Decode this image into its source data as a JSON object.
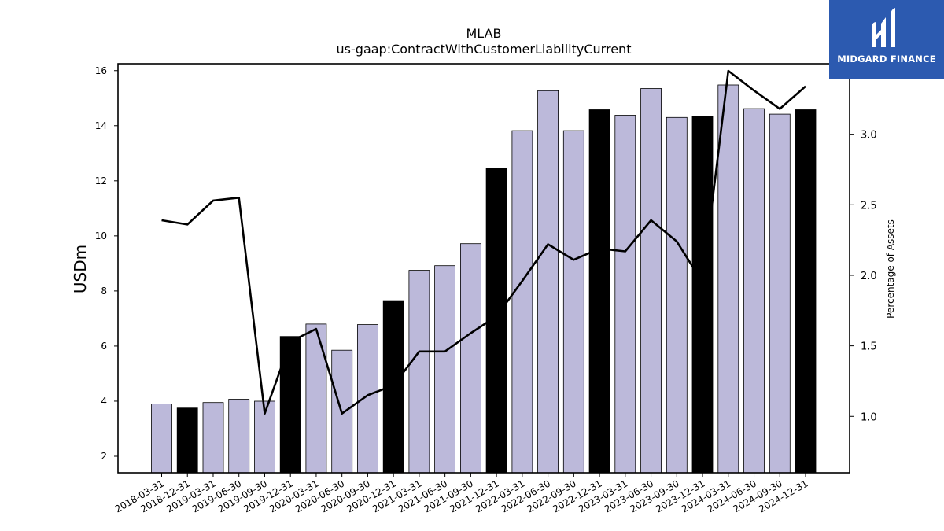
{
  "chart_data": {
    "type": "bar",
    "title": "MLAB",
    "subtitle": "us-gaap:ContractWithCustomerLiabilityCurrent",
    "xlabel": "",
    "ylabel": "USDm",
    "y2label": "Percentage of Assets",
    "ylim": [
      1.4,
      16.25
    ],
    "y2lim": [
      0.6,
      3.5
    ],
    "yticks": [
      "2",
      "4",
      "6",
      "8",
      "10",
      "12",
      "14",
      "16"
    ],
    "y2ticks": [
      "1.0",
      "1.5",
      "2.0",
      "2.5",
      "3.0"
    ],
    "categories": [
      "2018-03-31",
      "2018-12-31",
      "2019-03-31",
      "2019-06-30",
      "2019-09-30",
      "2019-12-31",
      "2020-03-31",
      "2020-06-30",
      "2020-09-30",
      "2020-12-31",
      "2021-03-31",
      "2021-06-30",
      "2021-09-30",
      "2021-12-31",
      "2022-03-31",
      "2022-06-30",
      "2022-09-30",
      "2022-12-31",
      "2023-03-31",
      "2023-06-30",
      "2023-09-30",
      "2023-12-31",
      "2024-03-31",
      "2024-06-30",
      "2024-09-30",
      "2024-12-31"
    ],
    "values": [
      3.9,
      3.75,
      3.95,
      4.07,
      4.0,
      6.35,
      6.8,
      5.85,
      6.78,
      7.65,
      8.75,
      8.92,
      9.72,
      12.47,
      13.82,
      15.27,
      13.82,
      14.58,
      14.38,
      15.35,
      14.3,
      14.35,
      15.48,
      14.62,
      14.42,
      14.58
    ],
    "highlight": [
      false,
      true,
      false,
      false,
      false,
      true,
      false,
      false,
      false,
      true,
      false,
      false,
      false,
      true,
      false,
      false,
      false,
      true,
      false,
      false,
      false,
      true,
      false,
      false,
      false,
      true
    ],
    "series": [
      {
        "name": "",
        "axis": "right",
        "values": [
          2.39,
          2.36,
          2.53,
          2.55,
          1.02,
          1.53,
          1.62,
          1.02,
          1.15,
          1.22,
          1.46,
          1.46,
          1.59,
          1.71,
          1.96,
          2.22,
          2.11,
          2.19,
          2.17,
          2.39,
          2.24,
          1.95,
          3.45,
          3.31,
          3.18,
          3.34
        ]
      }
    ],
    "colors": {
      "bar": "#bcb9da",
      "highlight_bar": "#000000",
      "line": "#000000"
    },
    "grid": false,
    "legend": "none"
  },
  "logo": {
    "text": "MIDGARD FINANCE",
    "icon": "midgard-logo-icon",
    "color": "#2c5ab0"
  }
}
